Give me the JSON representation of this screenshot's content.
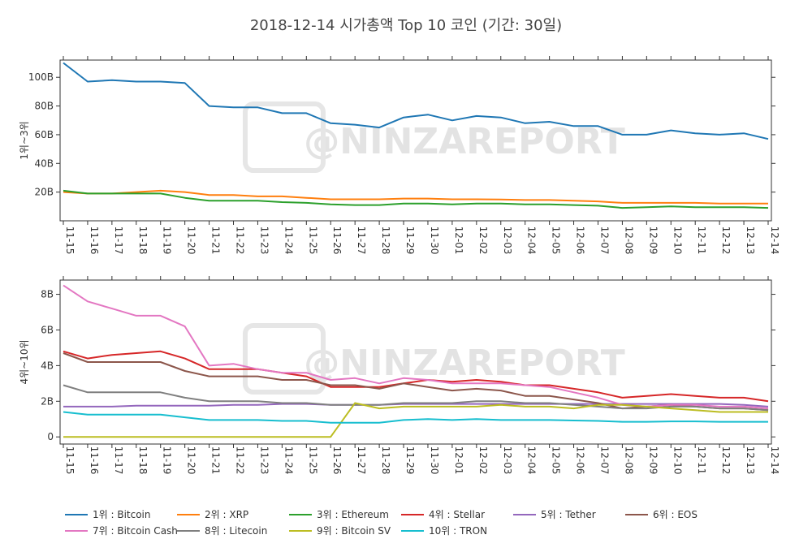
{
  "chart_data": {
    "type": "line",
    "title": "2018-12-14 시가총액 Top 10 코인 (기간: 30일)",
    "watermark": "@NINZAREPORT",
    "x": [
      "11-15",
      "11-16",
      "11-17",
      "11-18",
      "11-19",
      "11-20",
      "11-21",
      "11-22",
      "11-23",
      "11-24",
      "11-25",
      "11-26",
      "11-27",
      "11-28",
      "11-29",
      "11-30",
      "12-01",
      "12-02",
      "12-03",
      "12-04",
      "12-05",
      "12-06",
      "12-07",
      "12-08",
      "12-09",
      "12-10",
      "12-11",
      "12-12",
      "12-13",
      "12-14"
    ],
    "panels": [
      {
        "ylabel": "1위~3위",
        "ylim": [
          0,
          112
        ],
        "yticks": [
          20,
          40,
          60,
          80,
          100
        ],
        "ytick_labels": [
          "20B",
          "40B",
          "60B",
          "80B",
          "100B"
        ],
        "series": [
          {
            "name": "1위 : Bitcoin",
            "color": "#1f77b4",
            "values": [
              110,
              97,
              98,
              97,
              97,
              96,
              80,
              79,
              79,
              75,
              75,
              68,
              67,
              65,
              72,
              74,
              70,
              73,
              72,
              68,
              69,
              66,
              66,
              60,
              60,
              63,
              61,
              60,
              61,
              57
            ]
          },
          {
            "name": "2위 : XRP",
            "color": "#ff7f0e",
            "values": [
              20,
              19,
              19,
              20,
              21,
              20,
              18,
              18,
              17,
              17,
              16,
              15,
              15,
              15,
              15.5,
              15.5,
              15,
              15,
              14.8,
              14.5,
              14.5,
              14,
              13.5,
              12.5,
              12.5,
              12.5,
              12.5,
              12,
              12,
              12
            ]
          },
          {
            "name": "3위 : Ethereum",
            "color": "#2ca02c",
            "values": [
              21,
              19,
              19,
              19,
              19,
              16,
              14,
              14,
              14,
              13,
              12.5,
              11.5,
              11,
              11,
              12,
              12,
              11.5,
              12,
              12,
              11.5,
              11.5,
              11,
              10.5,
              9,
              9.5,
              10,
              9.5,
              9.5,
              9.5,
              9
            ]
          }
        ]
      },
      {
        "ylabel": "4위~10위",
        "ylim": [
          -0.4,
          8.8
        ],
        "yticks": [
          0,
          2,
          4,
          6,
          8
        ],
        "ytick_labels": [
          "0",
          "2B",
          "4B",
          "6B",
          "8B"
        ],
        "series": [
          {
            "name": "4위 : Stellar",
            "color": "#d62728",
            "values": [
              4.8,
              4.4,
              4.6,
              4.7,
              4.8,
              4.4,
              3.8,
              3.8,
              3.8,
              3.6,
              3.4,
              2.8,
              2.8,
              2.8,
              3.0,
              3.2,
              3.1,
              3.2,
              3.1,
              2.9,
              2.9,
              2.7,
              2.5,
              2.2,
              2.3,
              2.4,
              2.3,
              2.2,
              2.2,
              2.0
            ]
          },
          {
            "name": "5위 : Tether",
            "color": "#9467bd",
            "values": [
              1.7,
              1.7,
              1.7,
              1.75,
              1.75,
              1.75,
              1.75,
              1.8,
              1.8,
              1.85,
              1.85,
              1.8,
              1.8,
              1.8,
              1.85,
              1.85,
              1.85,
              1.85,
              1.85,
              1.85,
              1.85,
              1.85,
              1.85,
              1.85,
              1.85,
              1.85,
              1.85,
              1.85,
              1.8,
              1.7
            ]
          },
          {
            "name": "6위 : EOS",
            "color": "#8c564b",
            "values": [
              4.7,
              4.2,
              4.2,
              4.2,
              4.2,
              3.7,
              3.4,
              3.4,
              3.4,
              3.2,
              3.2,
              2.9,
              2.9,
              2.7,
              3.0,
              2.8,
              2.6,
              2.7,
              2.6,
              2.3,
              2.3,
              2.1,
              1.9,
              1.6,
              1.7,
              1.8,
              1.7,
              1.6,
              1.6,
              1.5
            ]
          },
          {
            "name": "7위 : Bitcoin Cash",
            "color": "#e377c2",
            "values": [
              8.5,
              7.6,
              7.2,
              6.8,
              6.8,
              6.2,
              4.0,
              4.1,
              3.8,
              3.6,
              3.6,
              3.2,
              3.3,
              3.0,
              3.3,
              3.2,
              3.0,
              3.0,
              3.0,
              2.9,
              2.8,
              2.5,
              2.2,
              1.8,
              1.7,
              1.8,
              1.8,
              1.7,
              1.7,
              1.6
            ]
          },
          {
            "name": "8위 : Litecoin",
            "color": "#7f7f7f",
            "values": [
              2.9,
              2.5,
              2.5,
              2.5,
              2.5,
              2.2,
              2.0,
              2.0,
              2.0,
              1.9,
              1.9,
              1.8,
              1.8,
              1.8,
              1.9,
              1.9,
              1.9,
              2.0,
              2.0,
              1.9,
              1.9,
              1.8,
              1.7,
              1.6,
              1.6,
              1.7,
              1.7,
              1.6,
              1.6,
              1.5
            ]
          },
          {
            "name": "9위 : Bitcoin SV",
            "color": "#bcbd22",
            "values": [
              0,
              0,
              0,
              0,
              0,
              0,
              0,
              0,
              0,
              0,
              0,
              0,
              1.9,
              1.6,
              1.7,
              1.7,
              1.7,
              1.7,
              1.8,
              1.7,
              1.7,
              1.6,
              1.8,
              1.8,
              1.7,
              1.6,
              1.5,
              1.4,
              1.4,
              1.4
            ]
          },
          {
            "name": "10위 : TRON",
            "color": "#17becf",
            "values": [
              1.4,
              1.25,
              1.25,
              1.25,
              1.25,
              1.1,
              0.95,
              0.95,
              0.95,
              0.9,
              0.9,
              0.8,
              0.8,
              0.8,
              0.95,
              1.0,
              0.95,
              1.0,
              0.95,
              0.95,
              0.95,
              0.92,
              0.9,
              0.85,
              0.85,
              0.87,
              0.87,
              0.85,
              0.85,
              0.85
            ]
          }
        ]
      }
    ],
    "legend_placement": "bottom"
  }
}
